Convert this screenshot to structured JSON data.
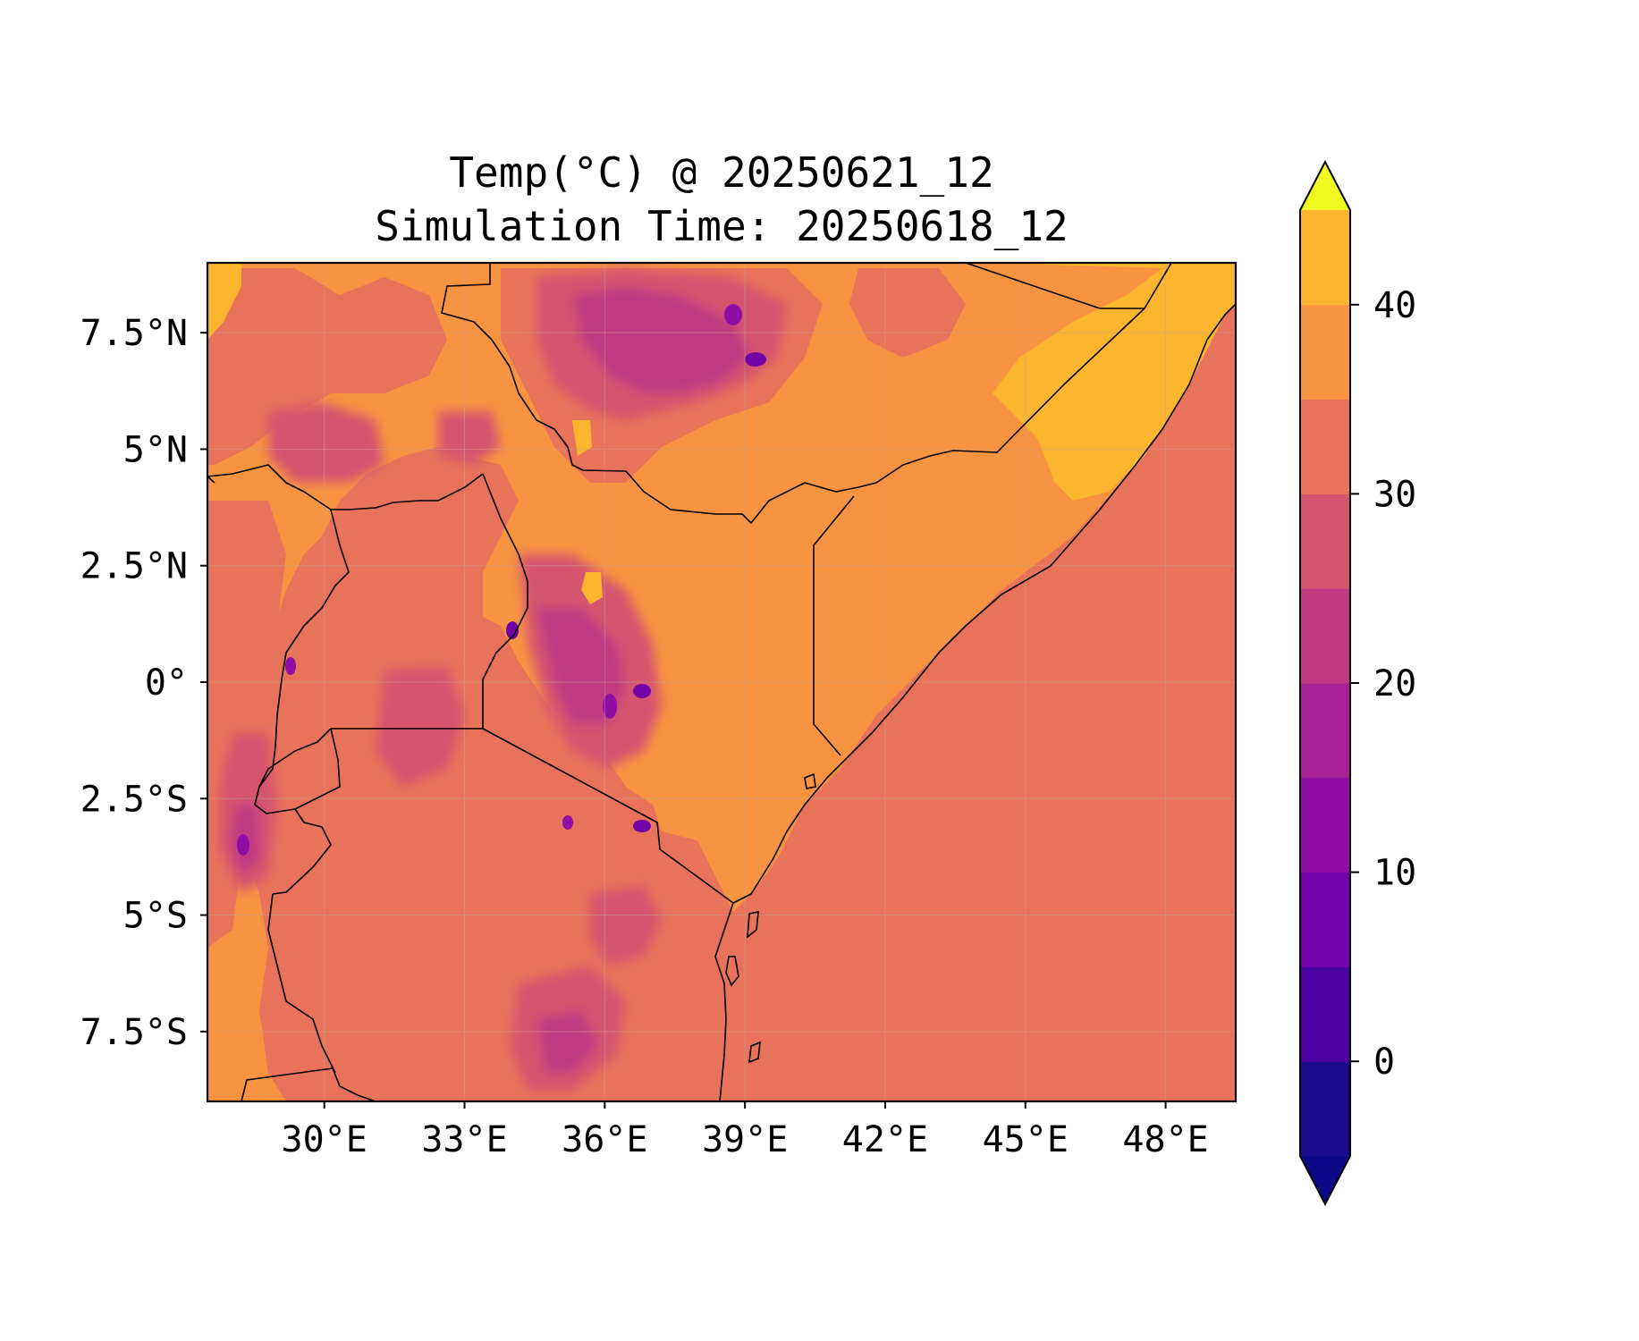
{
  "title": {
    "line1": "Temp(°C) @ 20250621_12",
    "line2": "Simulation Time: 20250618_12"
  },
  "map": {
    "region": "East Africa",
    "lon_range": [
      27.5,
      49.5
    ],
    "lat_range": [
      -9.0,
      9.0
    ],
    "x_ticks": [
      {
        "lon": 30,
        "label": "30°E"
      },
      {
        "lon": 33,
        "label": "33°E"
      },
      {
        "lon": 36,
        "label": "36°E"
      },
      {
        "lon": 39,
        "label": "39°E"
      },
      {
        "lon": 42,
        "label": "42°E"
      },
      {
        "lon": 45,
        "label": "45°E"
      },
      {
        "lon": 48,
        "label": "48°E"
      }
    ],
    "y_ticks": [
      {
        "lat": 7.5,
        "label": "7.5°N"
      },
      {
        "lat": 5,
        "label": "5°N"
      },
      {
        "lat": 2.5,
        "label": "2.5°N"
      },
      {
        "lat": 0,
        "label": "0°"
      },
      {
        "lat": -2.5,
        "label": "2.5°S"
      },
      {
        "lat": -5,
        "label": "5°S"
      },
      {
        "lat": -7.5,
        "label": "7.5°S"
      }
    ],
    "grid": true,
    "ocean_color": "#e8735a"
  },
  "colorbar": {
    "cmap": "plasma",
    "extend": "both",
    "vmin": -5,
    "vmax": 45,
    "step": 5,
    "levels": [
      -5,
      0,
      5,
      10,
      15,
      20,
      25,
      30,
      35,
      40,
      45
    ],
    "colors": [
      "#0d0887",
      "#2a0593",
      "#5c01a6",
      "#7e03a8",
      "#9c179e",
      "#b52f8c",
      "#cc4778",
      "#de5f65",
      "#ed7953",
      "#f89540",
      "#fdb42f",
      "#f0f921"
    ],
    "bin_colors": [
      "#1d0a8c",
      "#4c02a1",
      "#7201a8",
      "#8f0da4",
      "#a82296",
      "#c03a83",
      "#d5546e",
      "#e8735a",
      "#f89441",
      "#fcb52e",
      "#f2e026"
    ],
    "ticks": [
      {
        "value": 0,
        "label": "0"
      },
      {
        "value": 10,
        "label": "10"
      },
      {
        "value": 20,
        "label": "20"
      },
      {
        "value": 30,
        "label": "30"
      },
      {
        "value": 40,
        "label": "40"
      }
    ]
  }
}
